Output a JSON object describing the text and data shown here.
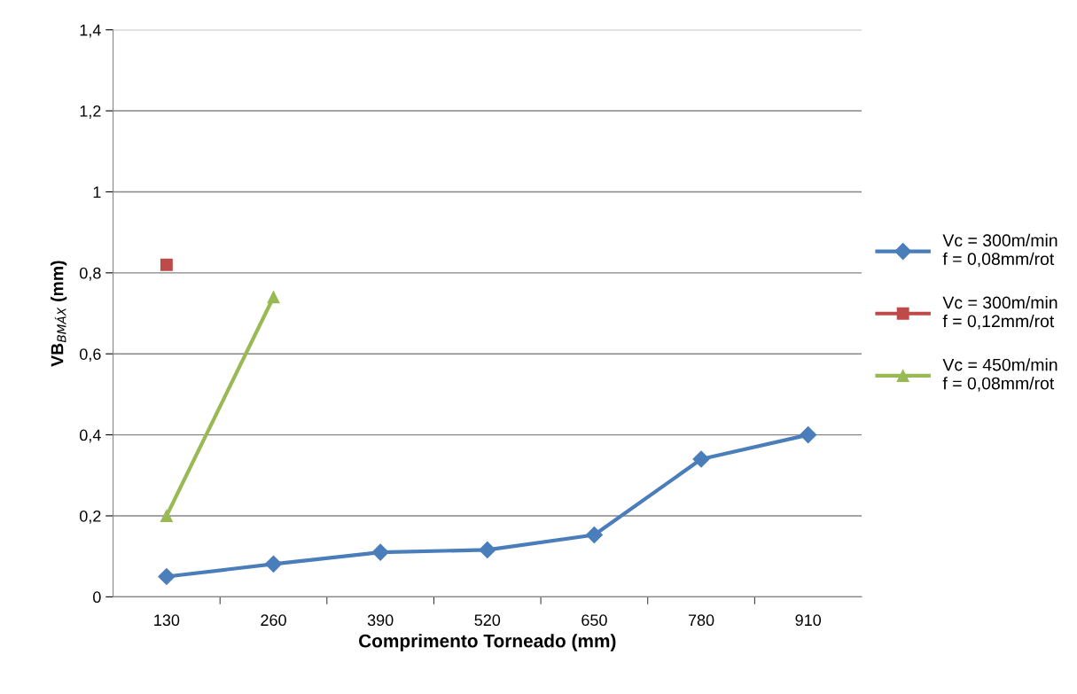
{
  "chart_data": {
    "type": "line",
    "xlabel": "Comprimento Torneado (mm)",
    "ylabel": "VB$_{BMÁX}$ (mm)",
    "categories": [
      "130",
      "260",
      "390",
      "520",
      "650",
      "780",
      "910"
    ],
    "ylim": [
      0,
      1.4
    ],
    "yticks": [
      0,
      {
        "value": 0.2,
        "label": "0,2"
      },
      {
        "value": 0.4,
        "label": "0,4"
      },
      {
        "value": 0.6,
        "label": "0,6"
      },
      {
        "value": 0.8,
        "label": "0,8"
      },
      1,
      {
        "value": 1.2,
        "label": "1,2"
      },
      {
        "value": 1.4,
        "label": "1,4"
      }
    ],
    "grid": "y",
    "legend": "right",
    "line_style": "solid",
    "series": [
      {
        "name": "Vc = 300m/min\nf = 0,08mm/rot",
        "color": "#4a7ebb",
        "marker": "diamond",
        "values": [
          0.05,
          0.081,
          0.11,
          0.116,
          0.153,
          0.34,
          0.4
        ]
      },
      {
        "name": "Vc = 300m/min\nf = 0,12mm/rot",
        "color": "#be4b48",
        "marker": "square",
        "values": [
          0.82,
          null,
          null,
          null,
          null,
          null,
          null
        ]
      },
      {
        "name": "Vc = 450m/min\nf = 0,08mm/rot",
        "color": "#98b954",
        "marker": "triangle",
        "values": [
          0.2,
          0.74,
          null,
          null,
          null,
          null,
          null
        ]
      }
    ]
  }
}
